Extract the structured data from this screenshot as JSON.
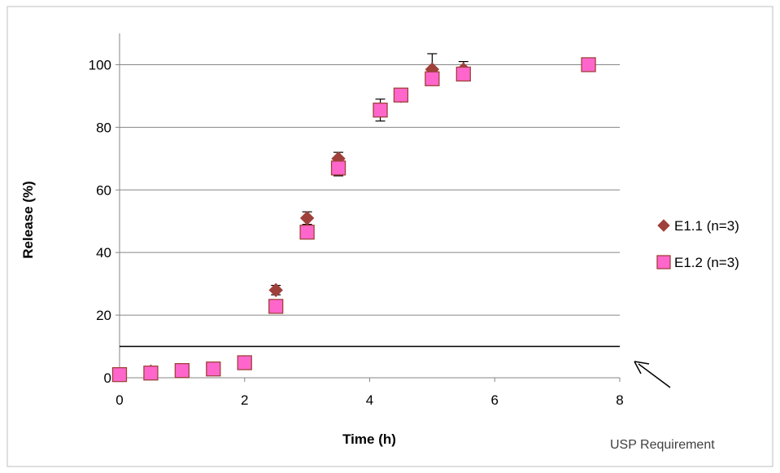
{
  "chart_data": {
    "type": "scatter",
    "title": "",
    "xlabel": "Time (h)",
    "ylabel": "Release (%)",
    "xlim": [
      0,
      8
    ],
    "ylim": [
      0,
      110
    ],
    "xticks": [
      0,
      2,
      4,
      6,
      8
    ],
    "yticks": [
      0,
      20,
      40,
      60,
      80,
      100
    ],
    "grid": "horizontal",
    "legend_position": "right",
    "series": [
      {
        "name": "E1.1 (n=3)",
        "marker": "diamond",
        "color": "#a0403a",
        "x": [
          0,
          0.5,
          1,
          1.5,
          2,
          2.5,
          3,
          3.5,
          4.17,
          4.5,
          5,
          5.5,
          7.5
        ],
        "y": [
          1,
          2,
          2.5,
          3,
          5,
          28,
          51,
          70,
          85.5,
          90,
          98.5,
          98.5,
          100
        ],
        "err": [
          0,
          0,
          0,
          0,
          0,
          1.5,
          2,
          2,
          3.5,
          0,
          5,
          2.5,
          0
        ]
      },
      {
        "name": "E1.2 (n=3)",
        "marker": "square",
        "color": "#ff66cc",
        "edge": "#a0403a",
        "x": [
          0,
          0.5,
          1,
          1.5,
          2,
          2.5,
          3,
          3.5,
          4.17,
          4.5,
          5,
          5.5,
          7.5
        ],
        "y": [
          1,
          1.5,
          2.3,
          2.8,
          4.8,
          22.8,
          46.5,
          67,
          85.5,
          90.3,
          95.5,
          97,
          100
        ],
        "err": [
          0,
          0,
          0,
          0,
          0,
          0,
          0,
          2.5,
          0,
          0,
          0,
          0,
          0
        ]
      }
    ],
    "reference_line": {
      "y": 10,
      "label": "USP Requirement"
    }
  }
}
